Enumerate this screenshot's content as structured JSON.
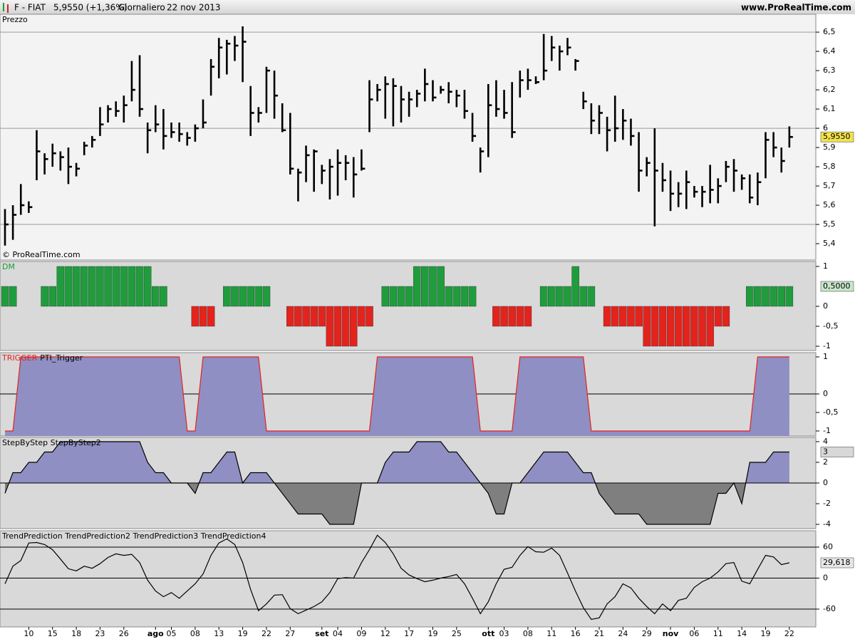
{
  "header": {
    "symbol": "F - FIAT",
    "price": "5,9550 (+1,36%)",
    "period": "Giornaliero",
    "date": "22 nov 2013",
    "site": "www.ProRealTime.com"
  },
  "chart_data": [
    {
      "type": "ohlc",
      "title": "Prezzo",
      "title_color": "#000000",
      "watermark": "© ProRealTime.com",
      "color": "#000000",
      "high": [
        5.58,
        5.6,
        5.71,
        5.62,
        5.99,
        5.87,
        5.92,
        5.88,
        5.9,
        5.82,
        5.93,
        5.96,
        6.11,
        6.12,
        6.14,
        6.17,
        6.35,
        6.38,
        6.03,
        6.12,
        6.1,
        6.03,
        6.03,
        5.98,
        6.02,
        6.15,
        6.36,
        6.47,
        6.46,
        6.48,
        6.53,
        6.22,
        6.11,
        6.32,
        6.3,
        6.13,
        6.08,
        5.79,
        5.91,
        5.89,
        5.81,
        5.84,
        5.89,
        5.86,
        5.85,
        5.89,
        6.25,
        6.23,
        6.27,
        6.26,
        6.22,
        6.19,
        6.2,
        6.31,
        6.25,
        6.22,
        6.24,
        6.2,
        6.2,
        6.08,
        5.9,
        6.23,
        6.25,
        6.2,
        6.24,
        6.3,
        6.31,
        6.27,
        6.49,
        6.48,
        6.43,
        6.47,
        6.36,
        6.19,
        6.13,
        6.12,
        6.06,
        6.17,
        6.1,
        6.05,
        5.98,
        5.85,
        6.0,
        5.82,
        5.78,
        5.72,
        5.78,
        5.7,
        5.7,
        5.81,
        5.74,
        5.83,
        5.84,
        5.76,
        5.76,
        5.77,
        5.98,
        5.98,
        5.9,
        6.01
      ],
      "low": [
        5.39,
        5.42,
        5.55,
        5.56,
        5.73,
        5.76,
        5.8,
        5.78,
        5.71,
        5.75,
        5.86,
        5.9,
        5.96,
        6.03,
        6.06,
        6.03,
        6.14,
        6.06,
        5.87,
        5.98,
        5.89,
        5.95,
        5.93,
        5.91,
        5.93,
        6.0,
        6.17,
        6.26,
        6.28,
        6.35,
        6.24,
        5.96,
        6.03,
        6.08,
        6.05,
        5.98,
        5.76,
        5.62,
        5.72,
        5.67,
        5.71,
        5.63,
        5.65,
        5.73,
        5.64,
        5.78,
        5.98,
        6.14,
        6.05,
        6.01,
        6.03,
        6.06,
        6.11,
        6.14,
        6.14,
        6.18,
        6.13,
        6.11,
        6.05,
        5.93,
        5.77,
        5.85,
        6.06,
        6.05,
        5.95,
        6.16,
        6.2,
        6.23,
        6.25,
        6.35,
        6.3,
        6.38,
        6.3,
        6.1,
        5.97,
        5.97,
        5.88,
        5.93,
        5.94,
        5.91,
        5.67,
        5.75,
        5.49,
        5.67,
        5.57,
        5.59,
        5.58,
        5.64,
        5.59,
        5.61,
        5.61,
        5.72,
        5.67,
        5.68,
        5.61,
        5.6,
        5.74,
        5.85,
        5.77,
        5.9
      ],
      "close": [
        5.5,
        5.55,
        5.6,
        5.59,
        5.88,
        5.84,
        5.87,
        5.85,
        5.8,
        5.79,
        5.91,
        5.94,
        6.02,
        6.1,
        6.09,
        6.12,
        6.2,
        6.1,
        5.99,
        6.02,
        5.96,
        5.98,
        5.97,
        5.95,
        6.0,
        6.03,
        6.32,
        6.42,
        6.44,
        6.43,
        6.45,
        6.08,
        6.08,
        6.3,
        6.17,
        5.99,
        5.79,
        5.77,
        5.86,
        5.88,
        5.78,
        5.8,
        5.82,
        5.82,
        5.76,
        5.79,
        6.15,
        6.2,
        6.23,
        6.22,
        6.15,
        6.15,
        6.18,
        6.23,
        6.16,
        6.2,
        6.19,
        6.17,
        6.09,
        5.96,
        5.88,
        6.12,
        6.1,
        6.08,
        5.98,
        6.25,
        6.25,
        6.24,
        6.3,
        6.42,
        6.4,
        6.42,
        6.35,
        6.14,
        6.04,
        6.08,
        5.99,
        6.0,
        6.04,
        5.96,
        5.78,
        5.82,
        5.78,
        5.73,
        5.66,
        5.66,
        5.72,
        5.67,
        5.67,
        5.68,
        5.7,
        5.8,
        5.78,
        5.74,
        5.64,
        5.72,
        5.94,
        5.9,
        5.83,
        5.955
      ],
      "last_label": "5,9550",
      "last_label_color": "#f2e34c",
      "xlim": [
        -0.63,
        102.34
      ],
      "ylim": [
        5.315,
        6.593
      ],
      "yticks": [
        {
          "value": 5.4,
          "label": "5,4"
        },
        {
          "value": 5.5,
          "label": "5,5"
        },
        {
          "value": 5.6,
          "label": "5,6"
        },
        {
          "value": 5.7,
          "label": "5,7"
        },
        {
          "value": 5.8,
          "label": "5,8"
        },
        {
          "value": 5.9,
          "label": "5,9"
        },
        6,
        {
          "value": 6.1,
          "label": "6,1"
        },
        {
          "value": 6.2,
          "label": "6,2"
        },
        {
          "value": 6.3,
          "label": "6,3"
        },
        {
          "value": 6.4,
          "label": "6,4"
        },
        {
          "value": 6.5,
          "label": "6,5"
        }
      ],
      "hlines": [
        6.5,
        6,
        5.5
      ]
    },
    {
      "type": "bar",
      "title": "DM",
      "title_color": "#1a9e3a",
      "values": [
        0.5,
        0.5,
        0,
        0,
        0,
        0.5,
        0.5,
        1,
        1,
        1,
        1,
        1,
        1,
        1,
        1,
        1,
        1,
        1,
        1,
        0.5,
        0.5,
        0,
        0,
        0,
        -0.5,
        -0.5,
        -0.5,
        0,
        0.5,
        0.5,
        0.5,
        0.5,
        0.5,
        0.5,
        0,
        0,
        -0.5,
        -0.5,
        -0.5,
        -0.5,
        -0.5,
        -1,
        -1,
        -1,
        -1,
        -0.5,
        -0.5,
        0,
        0.5,
        0.5,
        0.5,
        0.5,
        1,
        1,
        1,
        1,
        0.5,
        0.5,
        0.5,
        0.5,
        0,
        0,
        -0.5,
        -0.5,
        -0.5,
        -0.5,
        -0.5,
        0,
        0.5,
        0.5,
        0.5,
        0.5,
        1,
        0.5,
        0.5,
        0,
        -0.5,
        -0.5,
        -0.5,
        -0.5,
        -0.5,
        -1,
        -1,
        -1,
        -1,
        -1,
        -1,
        -1,
        -1,
        -1,
        -0.5,
        -0.5,
        0,
        0,
        0.5,
        0.5,
        0.5,
        0.5,
        0.5,
        0.5
      ],
      "positive_color": "#1f9d3c",
      "negative_color": "#e3231c",
      "last_label": "0,5000",
      "last_label_color": "#c8e6c8",
      "xlim": [
        -0.63,
        102.34
      ],
      "ylim": [
        -1.107,
        1.125
      ],
      "yticks": [
        1,
        0,
        {
          "value": -0.5,
          "label": "-0,5"
        },
        -1
      ]
    },
    {
      "type": "area",
      "title": "TRIGGER",
      "title_color": "#e3231c",
      "subtitle": "PTI_Trigger",
      "fill_to": "bottom",
      "values": [
        -1,
        -1,
        1,
        1,
        1,
        1,
        1,
        1,
        1,
        1,
        1,
        1,
        1,
        1,
        1,
        1,
        1,
        1,
        1,
        1,
        1,
        1,
        1,
        -1,
        -1,
        1,
        1,
        1,
        1,
        1,
        1,
        1,
        1,
        -1,
        -1,
        -1,
        -1,
        -1,
        -1,
        -1,
        -1,
        -1,
        -1,
        -1,
        -1,
        -1,
        -1,
        1,
        1,
        1,
        1,
        1,
        1,
        1,
        1,
        1,
        1,
        1,
        1,
        1,
        -1,
        -1,
        -1,
        -1,
        -1,
        1,
        1,
        1,
        1,
        1,
        1,
        1,
        1,
        1,
        -1,
        -1,
        -1,
        -1,
        -1,
        -1,
        -1,
        -1,
        -1,
        -1,
        -1,
        -1,
        -1,
        -1,
        -1,
        -1,
        -1,
        -1,
        -1,
        -1,
        -1,
        1,
        1,
        1,
        1,
        1
      ],
      "line_color": "#e3231c",
      "fill": "#8f8fc4",
      "xlim": [
        -0.63,
        102.34
      ],
      "ylim": [
        -1.135,
        1.115
      ],
      "yticks": [
        1,
        0,
        {
          "value": -0.5,
          "label": "-0,5"
        },
        -1
      ],
      "hlines": [
        0
      ]
    },
    {
      "type": "area",
      "title": "StepByStep StepByStep2",
      "title_color": "#000000",
      "fill_to": "zero",
      "values": [
        -1,
        1,
        1,
        2,
        2,
        3,
        3,
        4,
        4,
        4,
        4,
        4,
        4,
        4,
        4,
        4,
        4,
        4,
        2,
        1,
        1,
        0,
        0,
        0,
        -1,
        1,
        1,
        2,
        3,
        3,
        0,
        1,
        1,
        1,
        0,
        -1,
        -2,
        -3,
        -3,
        -3,
        -3,
        -4,
        -4,
        -4,
        -4,
        0,
        0,
        0,
        2,
        3,
        3,
        3,
        4,
        4,
        4,
        4,
        3,
        3,
        2,
        1,
        0,
        -1,
        -3,
        -3,
        0,
        0,
        1,
        2,
        3,
        3,
        3,
        3,
        2,
        1,
        1,
        -1,
        -2,
        -3,
        -3,
        -3,
        -3,
        -4,
        -4,
        -4,
        -4,
        -4,
        -4,
        -4,
        -4,
        -4,
        -1,
        -1,
        0,
        -2,
        2,
        2,
        2,
        3,
        3,
        3
      ],
      "line_color": "#000000",
      "fill": "#8f8fc4",
      "negative_fill": "#7f7f7f",
      "last_label": "3",
      "last_label_color": "#d8d8d8",
      "xlim": [
        -0.63,
        102.34
      ],
      "ylim": [
        -4.41,
        4.41
      ],
      "yticks": [
        4,
        2,
        0,
        -2,
        -4
      ]
    },
    {
      "type": "line",
      "title": "TrendPrediction TrendPrediction2 TrendPrediction3 TrendPrediction4",
      "title_color": "#000000",
      "values": [
        -11,
        23,
        34,
        68,
        69,
        65,
        55,
        37,
        18,
        14,
        23,
        19,
        28,
        40,
        47,
        44,
        46,
        30,
        -4,
        -25,
        -36,
        -28,
        -39,
        -25,
        -11,
        8,
        44,
        68,
        76,
        65,
        30,
        -22,
        -63,
        -50,
        -33,
        -32,
        -59,
        -69,
        -62,
        -55,
        -46,
        -28,
        -1,
        1,
        0,
        30,
        55,
        83,
        69,
        47,
        19,
        6,
        -1,
        -7,
        -4,
        0,
        3,
        7,
        -11,
        -39,
        -69,
        -46,
        -11,
        17,
        21,
        44,
        61,
        51,
        50,
        58,
        44,
        10,
        -25,
        -57,
        -80,
        -77,
        -50,
        -36,
        -11,
        -19,
        -39,
        -55,
        -69,
        -50,
        -63,
        -43,
        -39,
        -18,
        -7,
        0,
        12,
        28,
        30,
        -6,
        -11,
        17,
        44,
        41,
        26,
        29.618
      ],
      "color": "#000000",
      "last_label": "29,618",
      "last_label_color": "#e8e8e8",
      "xlim": [
        -0.63,
        102.34
      ],
      "ylim": [
        -94.5,
        91.7
      ],
      "yticks": [
        60,
        0,
        -60
      ],
      "hlines": [
        60,
        0,
        -60
      ],
      "xticks": [
        {
          "value": 3,
          "label": "10"
        },
        {
          "value": 6,
          "label": "15"
        },
        {
          "value": 9,
          "label": "18"
        },
        {
          "value": 12,
          "label": "23"
        },
        {
          "value": 15,
          "label": "26"
        },
        {
          "value": 19,
          "label": "ago"
        },
        {
          "value": 21,
          "label": "05"
        },
        {
          "value": 24,
          "label": "08"
        },
        {
          "value": 27,
          "label": "13"
        },
        {
          "value": 30,
          "label": "19"
        },
        {
          "value": 33,
          "label": "22"
        },
        {
          "value": 36,
          "label": "27"
        },
        {
          "value": 40,
          "label": "set"
        },
        {
          "value": 42,
          "label": "04"
        },
        {
          "value": 45,
          "label": "09"
        },
        {
          "value": 48,
          "label": "12"
        },
        {
          "value": 51,
          "label": "17"
        },
        {
          "value": 54,
          "label": "19"
        },
        {
          "value": 57,
          "label": "25"
        },
        {
          "value": 61,
          "label": "ott"
        },
        {
          "value": 63,
          "label": "03"
        },
        {
          "value": 66,
          "label": "08"
        },
        {
          "value": 69,
          "label": "11"
        },
        {
          "value": 72,
          "label": "16"
        },
        {
          "value": 75,
          "label": "21"
        },
        {
          "value": 78,
          "label": "24"
        },
        {
          "value": 81,
          "label": "29"
        },
        {
          "value": 84,
          "label": "nov"
        },
        {
          "value": 87,
          "label": "06"
        },
        {
          "value": 90,
          "label": "11"
        },
        {
          "value": 93,
          "label": "14"
        },
        {
          "value": 96,
          "label": "19"
        },
        {
          "value": 99,
          "label": "22"
        }
      ]
    }
  ]
}
